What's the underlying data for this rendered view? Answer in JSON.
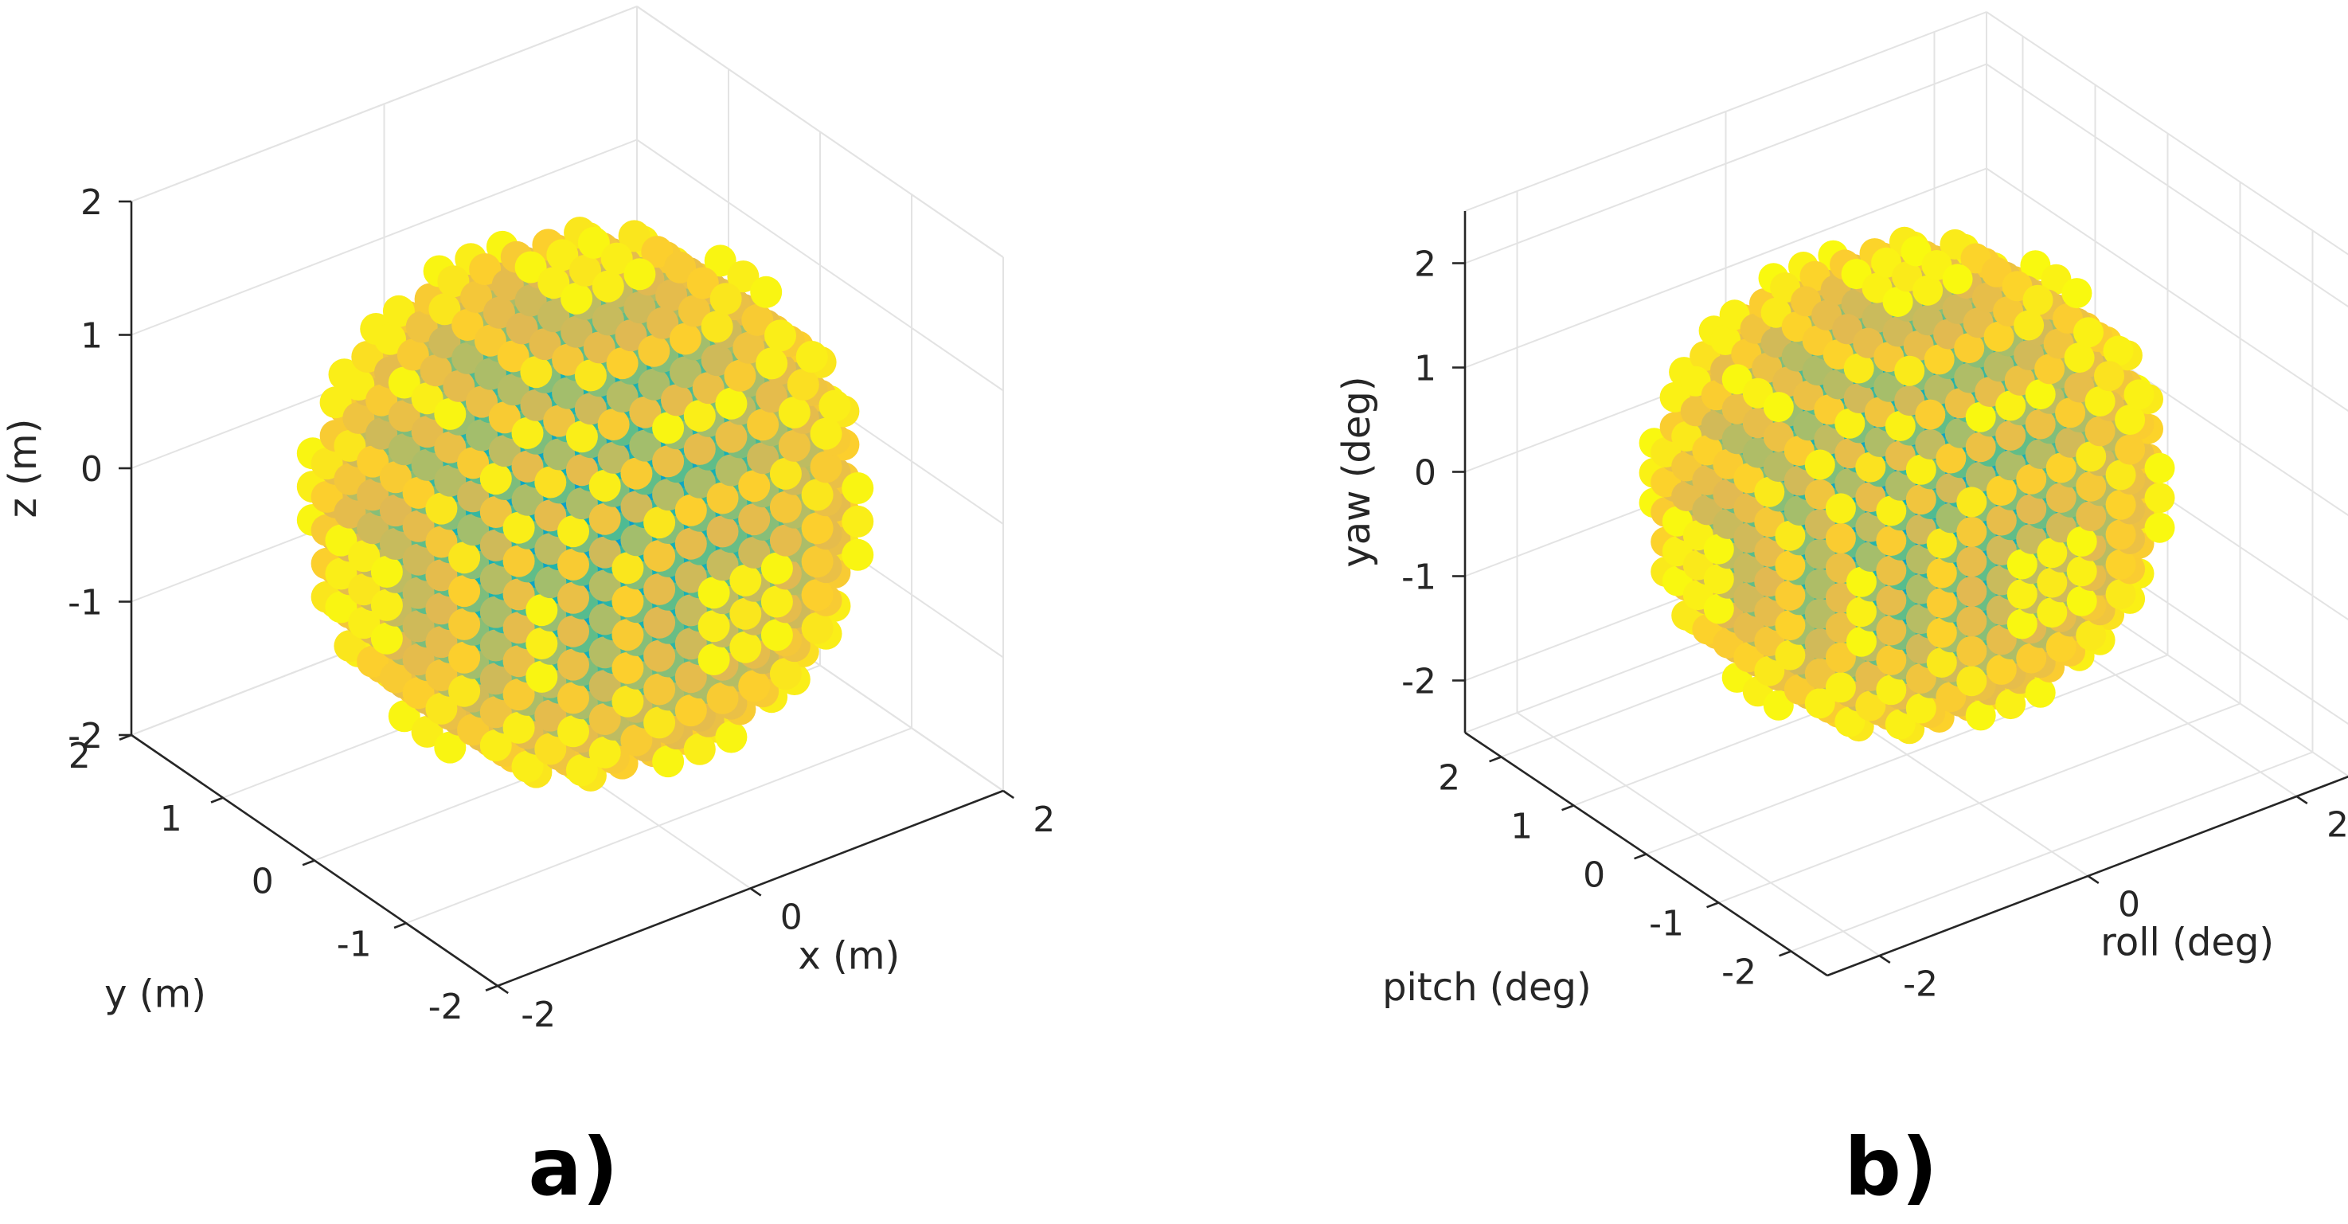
{
  "chart_data": [
    {
      "type": "scatter",
      "panel_label": "a)",
      "xlabel": "x (m)",
      "ylabel": "y (m)",
      "zlabel": "z (m)",
      "xlim": [
        -2,
        2
      ],
      "ylim": [
        -2,
        2
      ],
      "zlim": [
        -2,
        2
      ],
      "xticks": [
        {
          "value": -2,
          "label": "-2"
        },
        {
          "value": 0,
          "label": "0"
        },
        {
          "value": 2,
          "label": "2"
        }
      ],
      "yticks": [
        {
          "value": -2,
          "label": "-2"
        },
        {
          "value": -1,
          "label": "-1"
        },
        {
          "value": 0,
          "label": "0"
        },
        {
          "value": 1,
          "label": "1"
        },
        {
          "value": 2,
          "label": "2"
        }
      ],
      "zticks": [
        {
          "value": -2,
          "label": "-2"
        },
        {
          "value": -1,
          "label": "-1"
        },
        {
          "value": 0,
          "label": "0"
        },
        {
          "value": 1,
          "label": "1"
        },
        {
          "value": 2,
          "label": "2"
        }
      ],
      "points": {
        "grid": "uniform lattice inside a sphere",
        "min": -1.75,
        "max": 1.75,
        "step": 0.25,
        "radius": 1.8
      },
      "color_by": "distance from origin",
      "colormap": "parula"
    },
    {
      "type": "scatter",
      "panel_label": "b)",
      "xlabel": "roll (deg)",
      "ylabel": "pitch (deg)",
      "zlabel": "yaw (deg)",
      "xlim": [
        -2.5,
        2.5
      ],
      "ylim": [
        -2.5,
        2.5
      ],
      "zlim": [
        -2.5,
        2.5
      ],
      "xticks": [
        {
          "value": -2,
          "label": "-2"
        },
        {
          "value": 0,
          "label": "0"
        },
        {
          "value": 2,
          "label": "2"
        }
      ],
      "yticks": [
        {
          "value": -2,
          "label": "-2"
        },
        {
          "value": -1,
          "label": "-1"
        },
        {
          "value": 0,
          "label": "0"
        },
        {
          "value": 1,
          "label": "1"
        },
        {
          "value": 2,
          "label": "2"
        }
      ],
      "zticks": [
        {
          "value": -2,
          "label": "-2"
        },
        {
          "value": -1,
          "label": "-1"
        },
        {
          "value": 0,
          "label": "0"
        },
        {
          "value": 1,
          "label": "1"
        },
        {
          "value": 2,
          "label": "2"
        }
      ],
      "points": {
        "grid": "uniform lattice inside a sphere",
        "min": -2,
        "max": 2,
        "step": 0.286,
        "radius": 2.05
      },
      "color_by": "distance from origin",
      "colormap": "parula"
    }
  ]
}
